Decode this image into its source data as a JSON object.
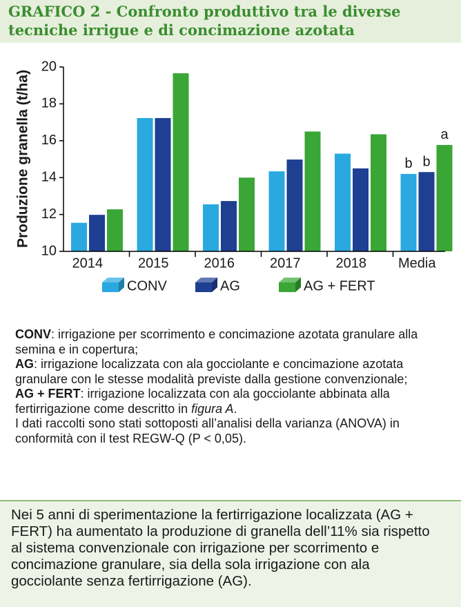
{
  "header": {
    "title_lines": [
      "GRAFICO 2 - Confronto produttivo tra le diverse",
      "tecniche irrigue e di concimazione azotata"
    ]
  },
  "chart_data": {
    "type": "bar",
    "y_label": "Produzione granella (t/ha)",
    "categories": [
      "2014",
      "2015",
      "2016",
      "2017",
      "2018",
      "Media"
    ],
    "series": [
      {
        "name": "CONV",
        "color": "#29a9e0",
        "values": [
          11.55,
          17.23,
          12.55,
          14.34,
          15.3,
          14.2
        ],
        "letters": [
          null,
          null,
          null,
          null,
          null,
          "b"
        ]
      },
      {
        "name": "AG",
        "color": "#1f3f93",
        "values": [
          11.98,
          17.23,
          12.73,
          14.98,
          14.5,
          14.3
        ],
        "letters": [
          null,
          null,
          null,
          null,
          null,
          "b"
        ]
      },
      {
        "name": "AG + FERT",
        "color": "#3aa636",
        "values": [
          12.28,
          19.66,
          14.0,
          16.5,
          16.35,
          15.77
        ],
        "letters": [
          null,
          null,
          null,
          null,
          null,
          "a"
        ]
      }
    ],
    "ylim": [
      10,
      20
    ],
    "yticks": [
      10,
      12,
      14,
      16,
      18,
      20
    ],
    "grid": false
  },
  "notes": [
    {
      "term": "CONV",
      "text": ": irrigazione per scorrimento e concimazione azotata granulare alla semina e in copertura;"
    },
    {
      "term": "AG",
      "text": ": irrigazione localizzata con ala gocciolante e concimazione azotata granulare con le stesse modalità previste dalla gestione convenzionale;"
    },
    {
      "term": "AG + FERT",
      "text": ": irrigazione localizzata con ala gocciolante abbinata alla fertirrigazione come descritto in ",
      "italic": "figura A",
      "after": "."
    },
    {
      "text": "I dati raccolti sono stati sottoposti all’analisi della varianza (ANOVA) in conformità con il test REGW-Q (P < 0,05)."
    }
  ],
  "footer": {
    "text": "Nei 5 anni di sperimentazione la fertirrigazione localizzata (AG + FERT) ha aumentato la produzione di granella dell’11% sia rispetto al sistema convenzionale con irrigazione per scorrimento e concimazione granulare, sia della sola irrigazione con ala gocciolante senza fertirrigazione (AG)."
  }
}
